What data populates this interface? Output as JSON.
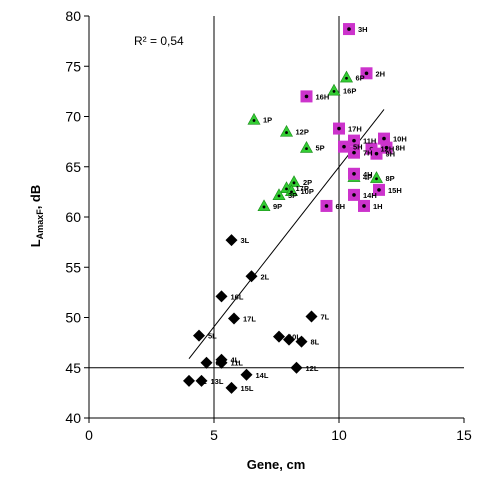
{
  "chart_data": {
    "type": "scatter",
    "xlabel": "Gene, cm",
    "ylabel_main": "L",
    "ylabel_sub": "AmaxF",
    "ylabel_unit": ", dB",
    "annotation": "R² = 0,54",
    "xlim": [
      0,
      15
    ],
    "ylim": [
      40,
      80
    ],
    "x_ticks": [
      0,
      5,
      10,
      15
    ],
    "y_ticks": [
      40,
      45,
      50,
      55,
      60,
      65,
      70,
      75,
      80
    ],
    "grid": {
      "vertical": [
        5,
        10
      ],
      "horizontal": [
        45
      ]
    },
    "trendline": {
      "x": [
        4.0,
        11.8
      ],
      "y": [
        45.9,
        70.7
      ]
    },
    "series": [
      {
        "marker": "diamond",
        "color": "#000000",
        "points": [
          {
            "label": "3L",
            "x": 5.7,
            "y": 57.7
          },
          {
            "label": "2L",
            "x": 6.5,
            "y": 54.1
          },
          {
            "label": "16L",
            "x": 5.3,
            "y": 52.1
          },
          {
            "label": "17L",
            "x": 5.8,
            "y": 49.9
          },
          {
            "label": "7L",
            "x": 8.9,
            "y": 50.1
          },
          {
            "label": "5L",
            "x": 4.4,
            "y": 48.2
          },
          {
            "label": "10L",
            "x": 7.6,
            "y": 48.1
          },
          {
            "label": "9L",
            "x": 8.0,
            "y": 47.8
          },
          {
            "label": "8L",
            "x": 8.5,
            "y": 47.6
          },
          {
            "label": "4L",
            "x": 5.3,
            "y": 45.8
          },
          {
            "label": "6L",
            "x": 4.7,
            "y": 45.5
          },
          {
            "label": "11L",
            "x": 5.3,
            "y": 45.5
          },
          {
            "label": "12L",
            "x": 8.3,
            "y": 45.0
          },
          {
            "label": "14L",
            "x": 6.3,
            "y": 44.3
          },
          {
            "label": "1L",
            "x": 4.0,
            "y": 43.7
          },
          {
            "label": "13L",
            "x": 4.5,
            "y": 43.7
          },
          {
            "label": "15L",
            "x": 5.7,
            "y": 43.0
          }
        ]
      },
      {
        "marker": "triangle",
        "color": "#33cc33",
        "points": [
          {
            "label": "6P",
            "x": 10.3,
            "y": 73.9
          },
          {
            "label": "16P",
            "x": 9.8,
            "y": 72.6
          },
          {
            "label": "1P",
            "x": 6.6,
            "y": 69.7
          },
          {
            "label": "12P",
            "x": 7.9,
            "y": 68.5
          },
          {
            "label": "5P",
            "x": 8.7,
            "y": 66.9
          },
          {
            "label": "4P",
            "x": 10.6,
            "y": 64.0
          },
          {
            "label": "8P",
            "x": 11.5,
            "y": 63.9
          },
          {
            "label": "2P",
            "x": 8.2,
            "y": 63.5
          },
          {
            "label": "17P",
            "x": 7.9,
            "y": 62.9
          },
          {
            "label": "10P",
            "x": 8.1,
            "y": 62.6
          },
          {
            "label": "3P",
            "x": 7.6,
            "y": 62.2
          },
          {
            "label": "9P",
            "x": 7.0,
            "y": 61.1
          }
        ]
      },
      {
        "marker": "square",
        "color": "#cc33cc",
        "points": [
          {
            "label": "3H",
            "x": 10.4,
            "y": 78.7
          },
          {
            "label": "2H",
            "x": 11.1,
            "y": 74.3
          },
          {
            "label": "16H",
            "x": 8.7,
            "y": 72.0
          },
          {
            "label": "17H",
            "x": 10.0,
            "y": 68.8
          },
          {
            "label": "11H",
            "x": 10.6,
            "y": 67.6
          },
          {
            "label": "10H",
            "x": 11.8,
            "y": 67.8
          },
          {
            "label": "5H",
            "x": 10.2,
            "y": 67.0
          },
          {
            "label": "12H",
            "x": 11.3,
            "y": 66.8
          },
          {
            "label": "8H",
            "x": 11.9,
            "y": 66.9
          },
          {
            "label": "9H",
            "x": 11.5,
            "y": 66.3
          },
          {
            "label": "7H",
            "x": 10.6,
            "y": 66.4
          },
          {
            "label": "4H",
            "x": 10.6,
            "y": 64.3
          },
          {
            "label": "15H",
            "x": 11.6,
            "y": 62.7
          },
          {
            "label": "14H",
            "x": 10.6,
            "y": 62.2
          },
          {
            "label": "6H",
            "x": 9.5,
            "y": 61.1
          },
          {
            "label": "1H",
            "x": 11.0,
            "y": 61.1
          }
        ]
      }
    ]
  }
}
